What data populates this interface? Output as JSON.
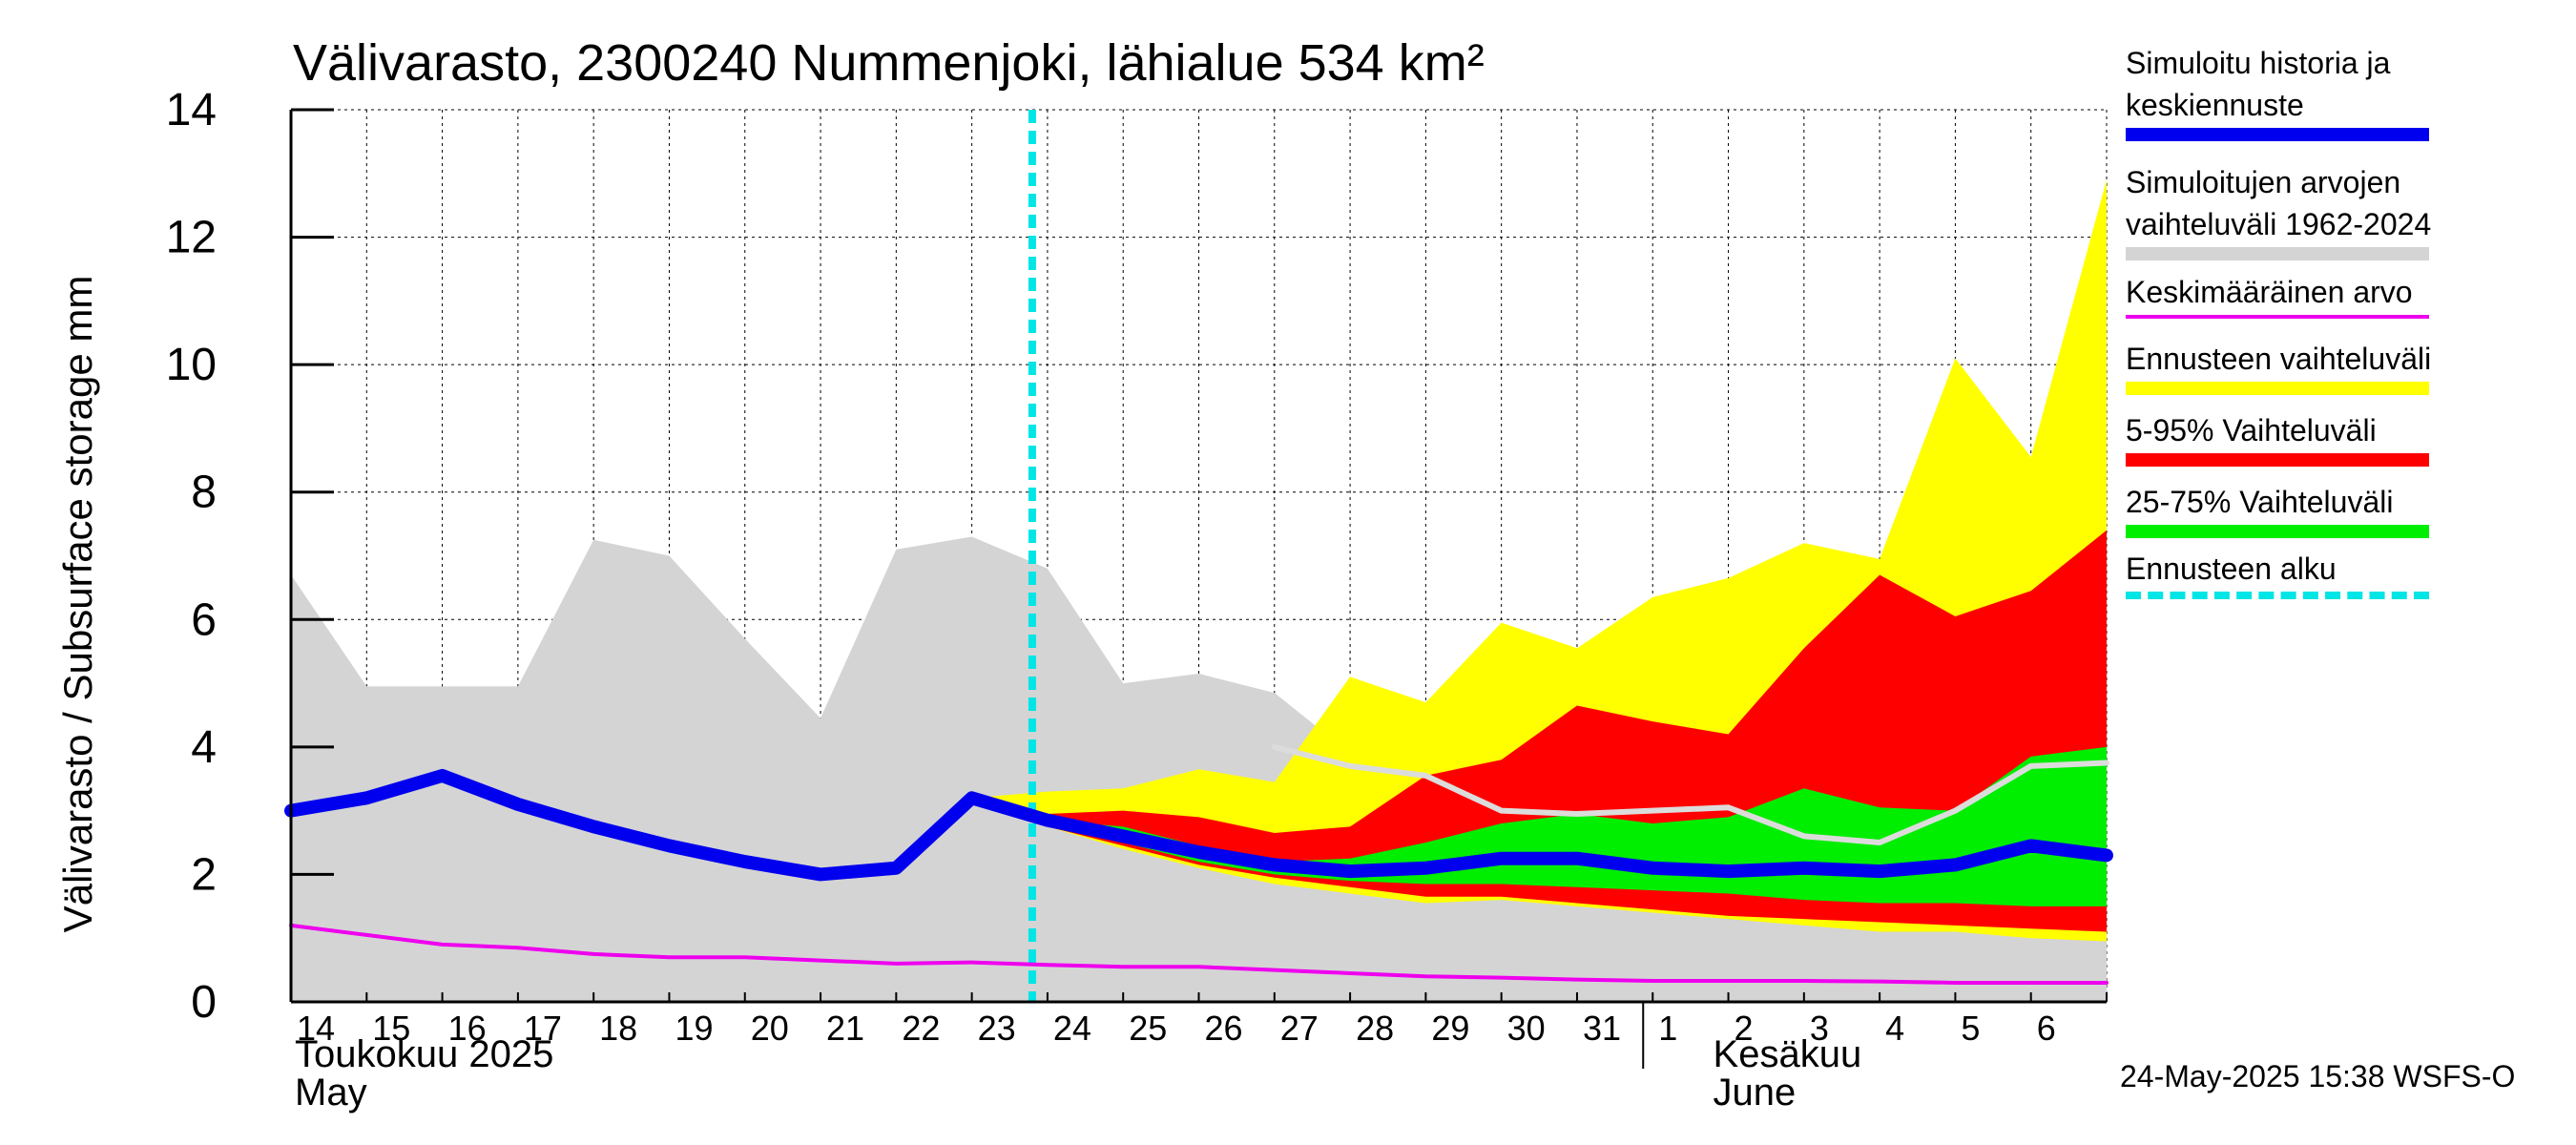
{
  "chart_data": {
    "type": "area",
    "title": "Välivarasto, 2300240 Nummenjoki, lähialue 534 km²",
    "ylabel": "Välivarasto / Subsurface storage  mm",
    "ylim": [
      0,
      14
    ],
    "yticks": [
      0,
      2,
      4,
      6,
      8,
      10,
      12,
      14
    ],
    "grid": true,
    "x_dates": [
      "2025-05-14",
      "2025-05-15",
      "2025-05-16",
      "2025-05-17",
      "2025-05-18",
      "2025-05-19",
      "2025-05-20",
      "2025-05-21",
      "2025-05-22",
      "2025-05-23",
      "2025-05-24",
      "2025-05-25",
      "2025-05-26",
      "2025-05-27",
      "2025-05-28",
      "2025-05-29",
      "2025-05-30",
      "2025-05-31",
      "2025-06-01",
      "2025-06-02",
      "2025-06-03",
      "2025-06-04",
      "2025-06-05",
      "2025-06-06",
      "2025-06-07"
    ],
    "x_tick_labels": [
      "14",
      "15",
      "16",
      "17",
      "18",
      "19",
      "20",
      "21",
      "22",
      "23",
      "24",
      "25",
      "26",
      "27",
      "28",
      "29",
      "30",
      "31",
      "1",
      "2",
      "3",
      "4",
      "5",
      "6"
    ],
    "month_labels": [
      {
        "fi": "Toukokuu  2025",
        "en": "May"
      },
      {
        "fi": "Kesäkuu",
        "en": "June"
      }
    ],
    "forecast_start": "2025-05-24",
    "series": [
      {
        "name": "Simuloitujen arvojen vaihteluväli 1962-2024",
        "kind": "band",
        "color": "#d4d4d4",
        "upper": [
          6.7,
          4.95,
          4.95,
          4.95,
          7.25,
          7.0,
          5.7,
          4.45,
          7.1,
          7.3,
          6.8,
          5.0,
          5.15,
          4.85,
          3.9,
          3.2,
          2.9,
          2.9,
          2.9,
          2.85,
          2.4,
          2.35,
          2.9,
          3.55,
          3.6
        ],
        "lower": [
          0,
          0,
          0,
          0,
          0,
          0,
          0,
          0,
          0,
          0,
          0,
          0,
          0,
          0,
          0,
          0,
          0,
          0,
          0,
          0,
          0,
          0,
          0,
          0,
          0
        ]
      },
      {
        "name": "Ennusteen vaihteluväli",
        "kind": "band",
        "color": "#ffff00",
        "x_start": "2025-05-23",
        "upper": [
          3.2,
          3.3,
          3.35,
          3.65,
          3.45,
          5.1,
          4.7,
          5.95,
          5.55,
          6.35,
          6.65,
          7.2,
          6.95,
          10.1,
          8.55,
          12.9
        ],
        "lower": [
          3.2,
          2.75,
          2.4,
          2.1,
          1.85,
          1.7,
          1.55,
          1.6,
          1.5,
          1.4,
          1.3,
          1.2,
          1.1,
          1.1,
          1.0,
          0.95
        ]
      },
      {
        "name": "5-95% Vaihteluväli",
        "kind": "band",
        "color": "#ff0000",
        "x_start": "2025-05-23",
        "upper": [
          3.2,
          2.95,
          3.0,
          2.9,
          2.65,
          2.75,
          3.55,
          3.8,
          4.65,
          4.4,
          4.2,
          5.55,
          6.7,
          6.05,
          6.45,
          7.4
        ],
        "lower": [
          3.2,
          2.75,
          2.45,
          2.15,
          1.95,
          1.8,
          1.65,
          1.65,
          1.55,
          1.45,
          1.35,
          1.3,
          1.25,
          1.2,
          1.15,
          1.1
        ]
      },
      {
        "name": "25-75% Vaihteluväli",
        "kind": "band",
        "color": "#00ee00",
        "x_start": "2025-05-23",
        "upper": [
          3.2,
          2.85,
          2.75,
          2.45,
          2.2,
          2.25,
          2.5,
          2.8,
          2.95,
          2.8,
          2.9,
          3.35,
          3.05,
          3.0,
          3.85,
          4.0
        ],
        "lower": [
          3.2,
          2.75,
          2.5,
          2.2,
          2.0,
          1.9,
          1.85,
          1.85,
          1.8,
          1.75,
          1.7,
          1.6,
          1.55,
          1.55,
          1.5,
          1.5
        ]
      },
      {
        "name": "Keskiarvo (ennuste)",
        "kind": "line",
        "color": "#dcdcdc",
        "legend": false,
        "x_start": "2025-05-27",
        "values": [
          4.0,
          3.7,
          3.55,
          3.0,
          2.95,
          3.0,
          3.05,
          2.6,
          2.5,
          3.0,
          3.7,
          3.75
        ]
      },
      {
        "name": "Simuloitu historia ja keskiennuste",
        "kind": "line",
        "color": "#0000ee",
        "values": [
          3.0,
          3.2,
          3.55,
          3.1,
          2.75,
          2.45,
          2.2,
          2.0,
          2.1,
          3.2,
          2.85,
          2.6,
          2.35,
          2.15,
          2.05,
          2.1,
          2.25,
          2.25,
          2.1,
          2.05,
          2.1,
          2.05,
          2.15,
          2.45,
          2.3
        ]
      },
      {
        "name": "Keskimääräinen arvo",
        "kind": "line",
        "color": "#ee00ee",
        "values": [
          1.2,
          1.05,
          0.9,
          0.85,
          0.75,
          0.7,
          0.7,
          0.65,
          0.6,
          0.62,
          0.58,
          0.55,
          0.55,
          0.5,
          0.45,
          0.4,
          0.38,
          0.35,
          0.33,
          0.33,
          0.33,
          0.32,
          0.3,
          0.3,
          0.3
        ]
      }
    ],
    "legend_placement": "right"
  },
  "legend": {
    "items": [
      {
        "label": "Simuloitu historia ja\nkeskiennuste",
        "color": "#0000ee",
        "style": "thick"
      },
      {
        "label": "Simuloitujen arvojen\nvaihteluväli 1962-2024",
        "color": "#d4d4d4",
        "style": "band"
      },
      {
        "label": "Keskimääräinen arvo",
        "color": "#ee00ee",
        "style": "thin"
      },
      {
        "label": "Ennusteen vaihteluväli",
        "color": "#ffff00",
        "style": "band"
      },
      {
        "label": "5-95% Vaihteluväli",
        "color": "#ff0000",
        "style": "band"
      },
      {
        "label": "25-75% Vaihteluväli",
        "color": "#00ee00",
        "style": "band"
      },
      {
        "label": "Ennusteen alku",
        "color": "#00e5e5",
        "style": "dashed"
      }
    ]
  },
  "footer": {
    "timestamp": "24-May-2025 15:38 WSFS-O"
  }
}
